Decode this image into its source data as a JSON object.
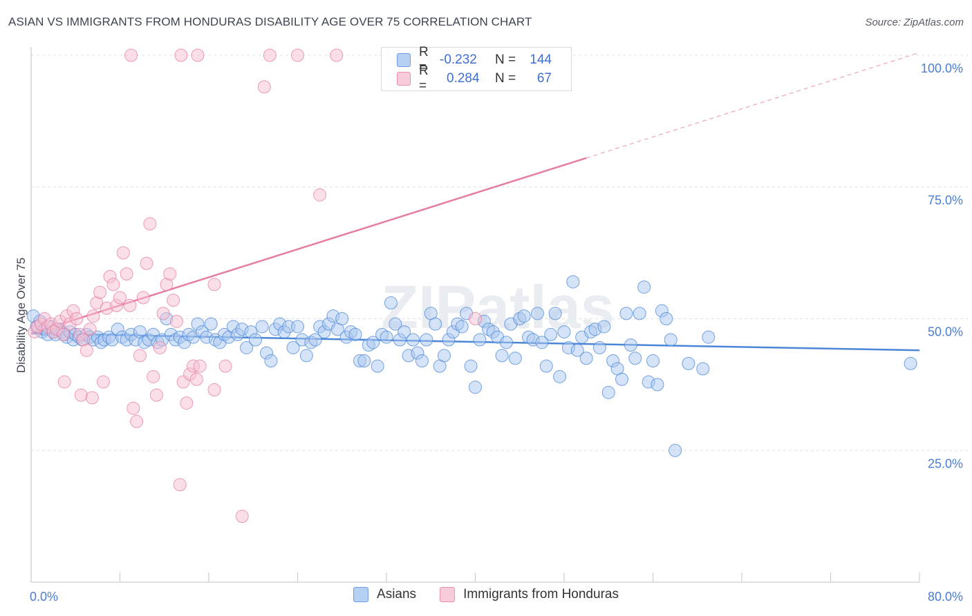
{
  "title": "ASIAN VS IMMIGRANTS FROM HONDURAS DISABILITY AGE OVER 75 CORRELATION CHART",
  "source": "Source: ZipAtlas.com",
  "watermark": "ZIPatlas",
  "colors": {
    "asians": "#4a86d8",
    "asians_fill": "#a9c7f0",
    "honduras": "#e67ca0",
    "honduras_fill": "#f5c0d2",
    "axis_tick": "#4a7dd1",
    "grid": "#dcdfe4"
  },
  "legend_top": {
    "rows": [
      {
        "series": "asians",
        "r_label": "R =",
        "r_value": "-0.232",
        "n_label": "N =",
        "n_value": "144"
      },
      {
        "series": "honduras",
        "r_label": "R =",
        "r_value": "0.284",
        "n_label": "N =",
        "n_value": "67"
      }
    ]
  },
  "legend_bottom": [
    "Asians",
    "Immigrants from Honduras"
  ],
  "chart_data": {
    "type": "scatter",
    "title": "ASIAN VS IMMIGRANTS FROM HONDURAS DISABILITY AGE OVER 75 CORRELATION CHART",
    "xlabel": "",
    "ylabel": "Disability Age Over 75",
    "xlim": [
      0,
      80
    ],
    "ylim": [
      0,
      100
    ],
    "x_tick_labels": [
      "0.0%",
      "80.0%"
    ],
    "y_ticks": [
      25,
      50,
      75,
      100
    ],
    "y_tick_labels": [
      "25.0%",
      "50.0%",
      "75.0%",
      "100.0%"
    ],
    "grid": true,
    "legend_position": "top-center",
    "series": [
      {
        "name": "Asians",
        "color": "#4a86d8",
        "trend": {
          "x": [
            0,
            80
          ],
          "y": [
            47.2,
            44.0
          ],
          "style": "solid"
        },
        "points": [
          [
            0.2,
            50.5
          ],
          [
            0.5,
            48.5
          ],
          [
            0.8,
            49.5
          ],
          [
            1.0,
            47.5
          ],
          [
            1.2,
            48.0
          ],
          [
            1.5,
            47.0
          ],
          [
            1.8,
            48.5
          ],
          [
            2.0,
            47.5
          ],
          [
            2.2,
            47.0
          ],
          [
            2.5,
            48.0
          ],
          [
            2.8,
            47.5
          ],
          [
            3.0,
            47.0
          ],
          [
            3.2,
            46.5
          ],
          [
            3.5,
            47.5
          ],
          [
            3.8,
            46.0
          ],
          [
            4.0,
            47.0
          ],
          [
            4.3,
            46.5
          ],
          [
            4.6,
            46.0
          ],
          [
            5.0,
            47.0
          ],
          [
            5.3,
            46.5
          ],
          [
            5.6,
            46.0
          ],
          [
            6.0,
            46.5
          ],
          [
            6.3,
            45.5
          ],
          [
            6.6,
            46.0
          ],
          [
            7.0,
            46.5
          ],
          [
            7.3,
            46.0
          ],
          [
            7.8,
            48.0
          ],
          [
            8.2,
            46.5
          ],
          [
            8.6,
            46.0
          ],
          [
            9.0,
            47.0
          ],
          [
            9.4,
            46.0
          ],
          [
            9.8,
            47.5
          ],
          [
            10.2,
            45.5
          ],
          [
            10.6,
            46.0
          ],
          [
            11.0,
            47.0
          ],
          [
            11.4,
            45.5
          ],
          [
            11.8,
            46.0
          ],
          [
            12.2,
            50.0
          ],
          [
            12.6,
            47.0
          ],
          [
            13.0,
            46.0
          ],
          [
            13.4,
            46.5
          ],
          [
            13.8,
            45.5
          ],
          [
            14.2,
            47.0
          ],
          [
            14.6,
            46.5
          ],
          [
            15.0,
            49.0
          ],
          [
            15.4,
            47.5
          ],
          [
            15.8,
            46.5
          ],
          [
            16.2,
            49.0
          ],
          [
            16.6,
            46.0
          ],
          [
            17.0,
            45.5
          ],
          [
            17.4,
            47.0
          ],
          [
            17.8,
            46.5
          ],
          [
            18.2,
            48.5
          ],
          [
            18.6,
            47.0
          ],
          [
            19.0,
            48.0
          ],
          [
            19.4,
            44.5
          ],
          [
            19.8,
            47.5
          ],
          [
            20.2,
            46.0
          ],
          [
            20.8,
            48.5
          ],
          [
            21.2,
            43.5
          ],
          [
            21.6,
            42.0
          ],
          [
            22.0,
            48.0
          ],
          [
            22.4,
            49.0
          ],
          [
            22.8,
            47.5
          ],
          [
            23.2,
            48.5
          ],
          [
            23.6,
            44.5
          ],
          [
            24.0,
            48.5
          ],
          [
            24.4,
            46.0
          ],
          [
            24.8,
            43.0
          ],
          [
            25.2,
            45.5
          ],
          [
            25.6,
            46.0
          ],
          [
            26.0,
            48.5
          ],
          [
            26.4,
            47.5
          ],
          [
            26.8,
            49.0
          ],
          [
            27.2,
            50.5
          ],
          [
            27.6,
            48.0
          ],
          [
            28.0,
            50.0
          ],
          [
            28.4,
            46.5
          ],
          [
            28.8,
            47.5
          ],
          [
            29.2,
            47.0
          ],
          [
            29.6,
            42.0
          ],
          [
            30.0,
            42.0
          ],
          [
            30.4,
            45.0
          ],
          [
            30.8,
            45.5
          ],
          [
            31.2,
            41.0
          ],
          [
            31.6,
            47.0
          ],
          [
            32.0,
            46.5
          ],
          [
            32.4,
            53.0
          ],
          [
            32.8,
            49.0
          ],
          [
            33.2,
            46.0
          ],
          [
            33.6,
            47.5
          ],
          [
            34.0,
            43.0
          ],
          [
            34.4,
            46.0
          ],
          [
            34.8,
            43.5
          ],
          [
            35.2,
            42.0
          ],
          [
            35.6,
            46.0
          ],
          [
            36.0,
            51.0
          ],
          [
            36.4,
            49.0
          ],
          [
            36.8,
            41.0
          ],
          [
            37.2,
            43.0
          ],
          [
            37.6,
            46.0
          ],
          [
            38.0,
            47.5
          ],
          [
            38.4,
            49.0
          ],
          [
            38.8,
            48.5
          ],
          [
            39.2,
            51.0
          ],
          [
            39.6,
            41.0
          ],
          [
            40.0,
            37.0
          ],
          [
            40.4,
            46.0
          ],
          [
            40.8,
            49.5
          ],
          [
            41.2,
            48.0
          ],
          [
            41.6,
            47.5
          ],
          [
            42.0,
            46.5
          ],
          [
            42.4,
            43.0
          ],
          [
            42.8,
            45.5
          ],
          [
            43.2,
            49.0
          ],
          [
            43.6,
            42.5
          ],
          [
            44.0,
            50.0
          ],
          [
            44.4,
            50.5
          ],
          [
            44.8,
            46.5
          ],
          [
            45.2,
            46.0
          ],
          [
            45.6,
            51.0
          ],
          [
            46.0,
            45.5
          ],
          [
            46.4,
            41.0
          ],
          [
            46.8,
            47.0
          ],
          [
            47.2,
            51.0
          ],
          [
            47.6,
            39.0
          ],
          [
            48.0,
            47.5
          ],
          [
            48.4,
            44.5
          ],
          [
            48.8,
            57.0
          ],
          [
            49.2,
            44.0
          ],
          [
            49.6,
            46.5
          ],
          [
            50.0,
            42.5
          ],
          [
            50.4,
            47.5
          ],
          [
            50.8,
            48.0
          ],
          [
            51.2,
            44.5
          ],
          [
            51.6,
            48.5
          ],
          [
            52.0,
            36.0
          ],
          [
            52.4,
            42.0
          ],
          [
            52.8,
            40.5
          ],
          [
            53.2,
            38.5
          ],
          [
            53.6,
            51.0
          ],
          [
            54.0,
            45.0
          ],
          [
            54.4,
            42.5
          ],
          [
            54.8,
            51.0
          ],
          [
            55.2,
            56.0
          ],
          [
            55.6,
            38.0
          ],
          [
            56.0,
            42.0
          ],
          [
            56.4,
            37.5
          ],
          [
            56.8,
            51.5
          ],
          [
            57.2,
            50.0
          ],
          [
            57.6,
            46.0
          ],
          [
            58.0,
            25.0
          ],
          [
            59.2,
            41.5
          ],
          [
            60.5,
            40.5
          ],
          [
            61.0,
            46.5
          ],
          [
            79.2,
            41.5
          ]
        ]
      },
      {
        "name": "Immigrants from Honduras",
        "color": "#e67ca0",
        "trend": {
          "x": [
            0,
            50
          ],
          "y": [
            47.2,
            80.5
          ],
          "style": "solid",
          "extension": {
            "x": [
              50,
              80
            ],
            "y": [
              80.5,
              100.5
            ],
            "style": "dashed"
          }
        },
        "points": [
          [
            0.3,
            47.5
          ],
          [
            0.6,
            48.5
          ],
          [
            0.9,
            49.0
          ],
          [
            1.2,
            50.0
          ],
          [
            1.5,
            48.5
          ],
          [
            1.8,
            49.0
          ],
          [
            2.0,
            47.5
          ],
          [
            2.3,
            48.0
          ],
          [
            2.6,
            49.5
          ],
          [
            2.9,
            47.0
          ],
          [
            3.2,
            50.5
          ],
          [
            3.5,
            49.0
          ],
          [
            3.8,
            51.5
          ],
          [
            4.1,
            50.0
          ],
          [
            4.4,
            47.0
          ],
          [
            4.7,
            46.0
          ],
          [
            5.0,
            44.0
          ],
          [
            5.3,
            48.0
          ],
          [
            5.6,
            50.5
          ],
          [
            5.9,
            53.0
          ],
          [
            6.2,
            55.0
          ],
          [
            6.5,
            38.0
          ],
          [
            6.8,
            52.0
          ],
          [
            7.1,
            58.0
          ],
          [
            7.4,
            56.5
          ],
          [
            7.7,
            52.5
          ],
          [
            8.0,
            54.0
          ],
          [
            8.3,
            62.5
          ],
          [
            8.6,
            58.5
          ],
          [
            8.9,
            52.5
          ],
          [
            9.2,
            33.0
          ],
          [
            9.5,
            30.5
          ],
          [
            9.8,
            43.0
          ],
          [
            10.1,
            54.0
          ],
          [
            10.4,
            60.5
          ],
          [
            10.7,
            68.0
          ],
          [
            11.0,
            39.0
          ],
          [
            11.3,
            35.5
          ],
          [
            11.6,
            44.5
          ],
          [
            11.9,
            51.0
          ],
          [
            12.2,
            56.5
          ],
          [
            12.5,
            58.5
          ],
          [
            12.8,
            53.5
          ],
          [
            13.1,
            49.5
          ],
          [
            13.4,
            18.5
          ],
          [
            13.7,
            38.0
          ],
          [
            14.0,
            34.0
          ],
          [
            14.3,
            39.5
          ],
          [
            14.6,
            41.0
          ],
          [
            14.9,
            38.5
          ],
          [
            15.2,
            41.0
          ],
          [
            16.5,
            36.5
          ],
          [
            17.5,
            41.0
          ],
          [
            19.0,
            12.5
          ],
          [
            21.0,
            94.0
          ],
          [
            21.5,
            100
          ],
          [
            24.0,
            100
          ],
          [
            26.0,
            73.5
          ],
          [
            27.5,
            100
          ],
          [
            16.5,
            56.5
          ],
          [
            15.0,
            100
          ],
          [
            13.5,
            100
          ],
          [
            9.0,
            100
          ],
          [
            4.5,
            35.5
          ],
          [
            5.5,
            35.0
          ],
          [
            3.0,
            38.0
          ],
          [
            40.0,
            50.0
          ]
        ]
      }
    ]
  }
}
